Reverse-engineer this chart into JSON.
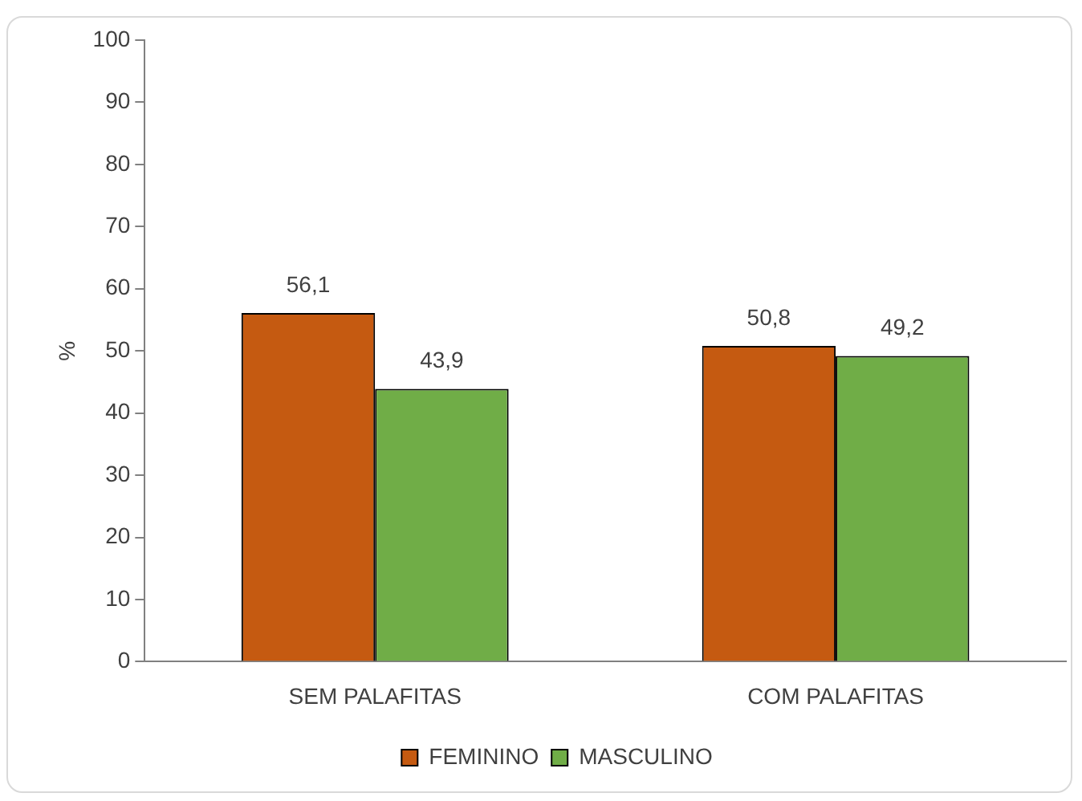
{
  "chart_data": {
    "type": "bar",
    "ylabel": "%",
    "categories": [
      "SEM PALAFITAS",
      "COM PALAFITAS"
    ],
    "series": [
      {
        "name": "FEMININO",
        "color": "#c55a11",
        "values": [
          56.1,
          50.8
        ],
        "value_labels": [
          "56,1",
          "50,8"
        ]
      },
      {
        "name": "MASCULINO",
        "color": "#70ad47",
        "values": [
          43.9,
          49.2
        ],
        "value_labels": [
          "43,9",
          "49,2"
        ]
      }
    ],
    "ylim": [
      0,
      100
    ],
    "yticks": [
      0,
      10,
      20,
      30,
      40,
      50,
      60,
      70,
      80,
      90,
      100
    ],
    "grid": false,
    "legend": "bottom"
  }
}
